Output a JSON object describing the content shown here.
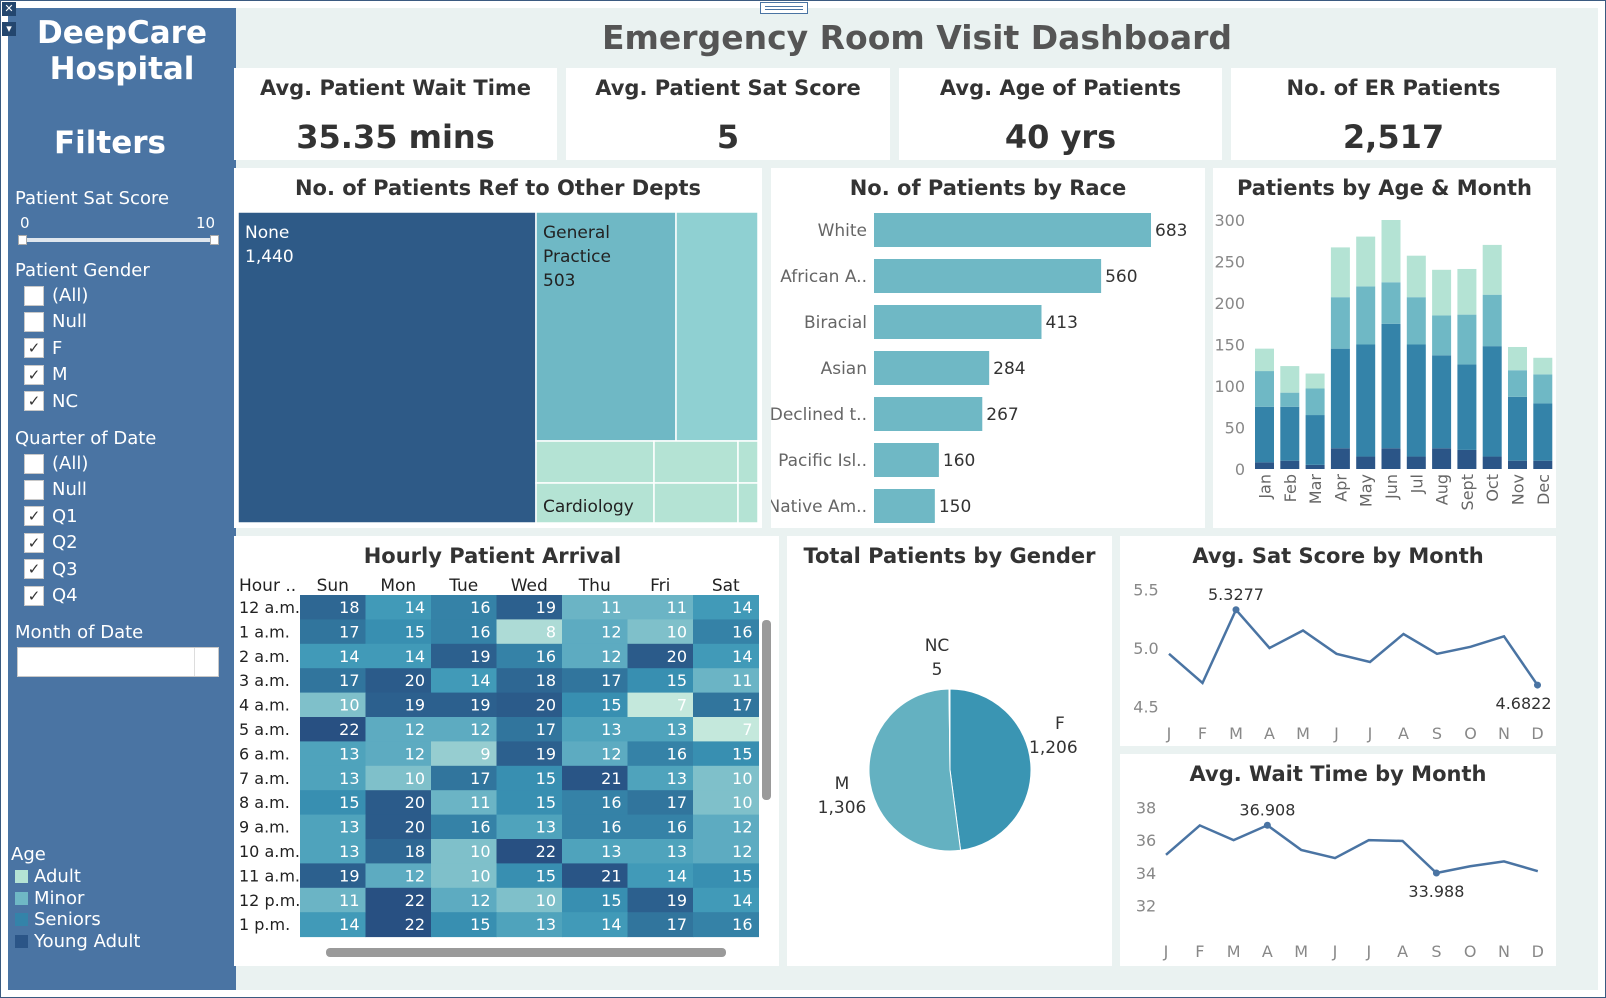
{
  "dashboard_title": "Emergency Room Visit Dashboard",
  "sidebar": {
    "hospital_line1": "DeepCare",
    "hospital_line2": "Hospital",
    "filters_title": "Filters",
    "sat_filter": {
      "label": "Patient Sat Score",
      "min": "0",
      "max": "10"
    },
    "gender_filter": {
      "label": "Patient Gender",
      "options": [
        {
          "label": "(All)",
          "checked": false
        },
        {
          "label": "Null",
          "checked": false
        },
        {
          "label": "F",
          "checked": true
        },
        {
          "label": "M",
          "checked": true
        },
        {
          "label": "NC",
          "checked": true
        }
      ]
    },
    "quarter_filter": {
      "label": "Quarter of Date",
      "options": [
        {
          "label": "(All)",
          "checked": false
        },
        {
          "label": "Null",
          "checked": false
        },
        {
          "label": "Q1",
          "checked": true
        },
        {
          "label": "Q2",
          "checked": true
        },
        {
          "label": "Q3",
          "checked": true
        },
        {
          "label": "Q4",
          "checked": true
        }
      ]
    },
    "month_filter": {
      "label": "Month of Date",
      "value": ""
    },
    "age_legend": {
      "title": "Age",
      "items": [
        {
          "label": "Adult",
          "color": "#b4e3d4"
        },
        {
          "label": "Minor",
          "color": "#6fb8c5"
        },
        {
          "label": "Seniors",
          "color": "#3483a9"
        },
        {
          "label": "Young Adult",
          "color": "#2b5587"
        }
      ]
    }
  },
  "kpis": [
    {
      "label": "Avg. Patient Wait Time",
      "value": "35.35 mins"
    },
    {
      "label": "Avg. Patient Sat Score",
      "value": "5"
    },
    {
      "label": "Avg. Age of Patients",
      "value": "40 yrs"
    },
    {
      "label": "No. of ER Patients",
      "value": "2,517"
    }
  ],
  "chart_data": [
    {
      "id": "referrals",
      "type": "treemap",
      "title": "No. of Patients Ref to Other Depts",
      "items": [
        {
          "name": "None",
          "value_label": "1,440",
          "value": 1440,
          "color": "#2e5a87"
        },
        {
          "name": "General Practice",
          "name_lines": [
            "General",
            "Practice"
          ],
          "value_label": "503",
          "value": 503,
          "color": "#6fb8c5"
        },
        {
          "name": "Cardiology",
          "color": "#b4e3d4"
        }
      ]
    },
    {
      "id": "race",
      "type": "bar",
      "orientation": "horizontal",
      "title": "No. of Patients by Race",
      "categories": [
        "White",
        "African A..",
        "Biracial",
        "Asian",
        "Declined t..",
        "Pacific Isl..",
        "Native Am.."
      ],
      "values": [
        683,
        560,
        413,
        284,
        267,
        160,
        150
      ],
      "color": "#6fb8c5"
    },
    {
      "id": "age_month",
      "type": "bar",
      "stacked": true,
      "title": "Patients by Age & Month",
      "categories": [
        "Jan",
        "Feb",
        "Mar",
        "Apr",
        "May",
        "Jun",
        "Jul",
        "Aug",
        "Sept",
        "Oct",
        "Nov",
        "Dec"
      ],
      "ylim": [
        0,
        300
      ],
      "yticks": [
        0,
        50,
        100,
        150,
        200,
        250,
        300
      ],
      "series": [
        {
          "name": "Young Adult",
          "color": "#2b5587",
          "values": [
            8,
            10,
            5,
            25,
            15,
            25,
            15,
            25,
            23,
            15,
            10,
            10
          ]
        },
        {
          "name": "Seniors",
          "color": "#3483a9",
          "values": [
            67,
            65,
            60,
            120,
            135,
            150,
            135,
            112,
            103,
            133,
            77,
            69
          ]
        },
        {
          "name": "Minor",
          "color": "#6fb8c5",
          "values": [
            43,
            17,
            32,
            62,
            70,
            50,
            57,
            48,
            60,
            62,
            32,
            35
          ]
        },
        {
          "name": "Adult",
          "color": "#b4e3d4",
          "values": [
            27,
            32,
            18,
            60,
            60,
            75,
            50,
            55,
            55,
            60,
            28,
            20
          ]
        }
      ]
    },
    {
      "id": "hourly",
      "type": "heatmap",
      "title": "Hourly Patient Arrival",
      "row_header": "Hour ..",
      "columns": [
        "Sun",
        "Mon",
        "Tue",
        "Wed",
        "Thu",
        "Fri",
        "Sat"
      ],
      "rows": [
        "12 a.m.",
        "1 a.m.",
        "2 a.m.",
        "3 a.m.",
        "4 a.m.",
        "5 a.m.",
        "6 a.m.",
        "7 a.m.",
        "8 a.m.",
        "9 a.m.",
        "10 a.m.",
        "11 a.m.",
        "12 p.m.",
        "1 p.m."
      ],
      "values": [
        [
          18,
          14,
          16,
          19,
          11,
          11,
          14
        ],
        [
          17,
          15,
          16,
          8,
          12,
          10,
          16
        ],
        [
          14,
          14,
          19,
          16,
          12,
          20,
          14
        ],
        [
          17,
          20,
          14,
          18,
          17,
          15,
          11
        ],
        [
          10,
          19,
          19,
          20,
          15,
          7,
          17
        ],
        [
          22,
          12,
          12,
          17,
          13,
          13,
          7
        ],
        [
          13,
          12,
          9,
          19,
          12,
          16,
          15
        ],
        [
          13,
          10,
          17,
          15,
          21,
          13,
          10
        ],
        [
          15,
          20,
          11,
          15,
          16,
          17,
          10
        ],
        [
          13,
          20,
          16,
          13,
          16,
          16,
          12
        ],
        [
          13,
          18,
          10,
          22,
          13,
          13,
          12
        ],
        [
          19,
          12,
          10,
          15,
          21,
          14,
          15
        ],
        [
          11,
          22,
          12,
          10,
          15,
          19,
          14
        ],
        [
          14,
          22,
          15,
          13,
          14,
          17,
          16
        ]
      ]
    },
    {
      "id": "gender",
      "type": "pie",
      "title": "Total Patients by Gender",
      "slices": [
        {
          "name": "F",
          "value": 1206,
          "value_label": "1,206",
          "color": "#3a95b3"
        },
        {
          "name": "M",
          "value": 1306,
          "value_label": "1,306",
          "color": "#64b1c1"
        },
        {
          "name": "NC",
          "value": 5,
          "value_label": "5",
          "color": "#2b5587"
        }
      ]
    },
    {
      "id": "sat_month",
      "type": "line",
      "title": "Avg. Sat Score by Month",
      "categories": [
        "J",
        "F",
        "M",
        "A",
        "M",
        "J",
        "J",
        "A",
        "S",
        "O",
        "N",
        "D"
      ],
      "values": [
        4.95,
        4.7,
        5.3277,
        5.0,
        5.15,
        4.95,
        4.88,
        5.12,
        4.95,
        5.01,
        5.1,
        4.6822
      ],
      "ylim": [
        4.4,
        5.6
      ],
      "yticks": [
        4.5,
        5.0,
        5.5
      ],
      "annotations": [
        {
          "index": 2,
          "label": "5.3277"
        },
        {
          "index": 11,
          "label": "4.6822"
        }
      ],
      "color": "#4a74a3"
    },
    {
      "id": "wait_month",
      "type": "line",
      "title": "Avg. Wait Time by Month",
      "categories": [
        "J",
        "F",
        "M",
        "A",
        "M",
        "J",
        "J",
        "A",
        "S",
        "O",
        "N",
        "D"
      ],
      "values": [
        35.1,
        36.9,
        36.0,
        36.908,
        35.4,
        34.9,
        36.0,
        35.95,
        33.988,
        34.4,
        34.7,
        34.1
      ],
      "ylim": [
        30.5,
        38.7
      ],
      "yticks": [
        32,
        34,
        36,
        38
      ],
      "annotations": [
        {
          "index": 3,
          "label": "36.908"
        },
        {
          "index": 8,
          "label": "33.988"
        }
      ],
      "color": "#4a74a3"
    }
  ]
}
